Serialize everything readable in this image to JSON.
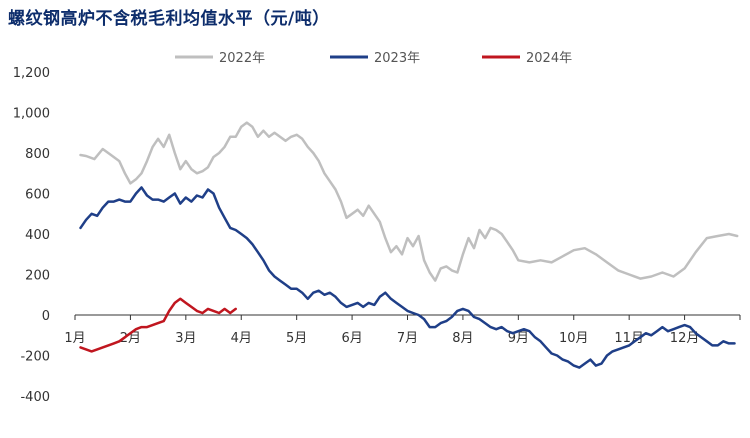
{
  "chart_data": {
    "type": "line",
    "title": "螺纹钢高炉不含税毛利均值水平（元/吨）",
    "x_unit": "month",
    "xlim": [
      1,
      13
    ],
    "xticks": [
      "1月",
      "2月",
      "3月",
      "4月",
      "5月",
      "6月",
      "7月",
      "8月",
      "9月",
      "10月",
      "11月",
      "12月"
    ],
    "yticks": [
      "1,200",
      "1,000",
      "800",
      "600",
      "400",
      "200",
      "0",
      "-200",
      "-400"
    ],
    "ylim": [
      -400,
      1200
    ],
    "legend_position": "top",
    "grid": false,
    "series": [
      {
        "name": "2022年",
        "color": "#bfbfbf",
        "points": [
          [
            1.1,
            790
          ],
          [
            1.2,
            785
          ],
          [
            1.35,
            770
          ],
          [
            1.5,
            820
          ],
          [
            1.65,
            790
          ],
          [
            1.8,
            760
          ],
          [
            1.9,
            700
          ],
          [
            2.0,
            650
          ],
          [
            2.1,
            670
          ],
          [
            2.2,
            700
          ],
          [
            2.3,
            760
          ],
          [
            2.4,
            830
          ],
          [
            2.5,
            870
          ],
          [
            2.6,
            830
          ],
          [
            2.7,
            890
          ],
          [
            2.8,
            800
          ],
          [
            2.9,
            720
          ],
          [
            3.0,
            760
          ],
          [
            3.1,
            720
          ],
          [
            3.2,
            700
          ],
          [
            3.3,
            710
          ],
          [
            3.4,
            730
          ],
          [
            3.5,
            780
          ],
          [
            3.6,
            800
          ],
          [
            3.7,
            830
          ],
          [
            3.8,
            880
          ],
          [
            3.9,
            880
          ],
          [
            4.0,
            930
          ],
          [
            4.1,
            950
          ],
          [
            4.2,
            930
          ],
          [
            4.3,
            880
          ],
          [
            4.4,
            910
          ],
          [
            4.5,
            880
          ],
          [
            4.6,
            900
          ],
          [
            4.7,
            880
          ],
          [
            4.8,
            860
          ],
          [
            4.9,
            880
          ],
          [
            5.0,
            890
          ],
          [
            5.1,
            870
          ],
          [
            5.2,
            830
          ],
          [
            5.3,
            800
          ],
          [
            5.4,
            760
          ],
          [
            5.5,
            700
          ],
          [
            5.6,
            660
          ],
          [
            5.7,
            620
          ],
          [
            5.8,
            560
          ],
          [
            5.9,
            480
          ],
          [
            6.0,
            500
          ],
          [
            6.1,
            520
          ],
          [
            6.2,
            490
          ],
          [
            6.3,
            540
          ],
          [
            6.4,
            500
          ],
          [
            6.5,
            460
          ],
          [
            6.6,
            380
          ],
          [
            6.7,
            310
          ],
          [
            6.8,
            340
          ],
          [
            6.9,
            300
          ],
          [
            7.0,
            380
          ],
          [
            7.1,
            340
          ],
          [
            7.2,
            390
          ],
          [
            7.3,
            270
          ],
          [
            7.4,
            210
          ],
          [
            7.5,
            170
          ],
          [
            7.6,
            230
          ],
          [
            7.7,
            240
          ],
          [
            7.8,
            220
          ],
          [
            7.9,
            210
          ],
          [
            8.0,
            300
          ],
          [
            8.1,
            380
          ],
          [
            8.2,
            330
          ],
          [
            8.3,
            420
          ],
          [
            8.4,
            380
          ],
          [
            8.5,
            430
          ],
          [
            8.6,
            420
          ],
          [
            8.7,
            400
          ],
          [
            8.8,
            360
          ],
          [
            8.9,
            320
          ],
          [
            9.0,
            270
          ],
          [
            9.2,
            260
          ],
          [
            9.4,
            270
          ],
          [
            9.6,
            260
          ],
          [
            9.8,
            290
          ],
          [
            10.0,
            320
          ],
          [
            10.2,
            330
          ],
          [
            10.4,
            300
          ],
          [
            10.6,
            260
          ],
          [
            10.8,
            220
          ],
          [
            11.0,
            200
          ],
          [
            11.2,
            180
          ],
          [
            11.4,
            190
          ],
          [
            11.6,
            210
          ],
          [
            11.8,
            190
          ],
          [
            12.0,
            230
          ],
          [
            12.2,
            310
          ],
          [
            12.4,
            380
          ],
          [
            12.6,
            390
          ],
          [
            12.8,
            400
          ],
          [
            12.95,
            390
          ]
        ]
      },
      {
        "name": "2023年",
        "color": "#1f3f88",
        "points": [
          [
            1.1,
            430
          ],
          [
            1.2,
            470
          ],
          [
            1.3,
            500
          ],
          [
            1.4,
            490
          ],
          [
            1.5,
            530
          ],
          [
            1.6,
            560
          ],
          [
            1.7,
            560
          ],
          [
            1.8,
            570
          ],
          [
            1.9,
            560
          ],
          [
            2.0,
            560
          ],
          [
            2.1,
            600
          ],
          [
            2.2,
            630
          ],
          [
            2.3,
            590
          ],
          [
            2.4,
            570
          ],
          [
            2.5,
            570
          ],
          [
            2.6,
            560
          ],
          [
            2.7,
            580
          ],
          [
            2.8,
            600
          ],
          [
            2.9,
            550
          ],
          [
            3.0,
            580
          ],
          [
            3.1,
            560
          ],
          [
            3.2,
            590
          ],
          [
            3.3,
            580
          ],
          [
            3.4,
            620
          ],
          [
            3.5,
            600
          ],
          [
            3.6,
            530
          ],
          [
            3.7,
            480
          ],
          [
            3.8,
            430
          ],
          [
            3.9,
            420
          ],
          [
            4.0,
            400
          ],
          [
            4.1,
            380
          ],
          [
            4.2,
            350
          ],
          [
            4.3,
            310
          ],
          [
            4.4,
            270
          ],
          [
            4.5,
            220
          ],
          [
            4.6,
            190
          ],
          [
            4.7,
            170
          ],
          [
            4.8,
            150
          ],
          [
            4.9,
            130
          ],
          [
            5.0,
            130
          ],
          [
            5.1,
            110
          ],
          [
            5.2,
            80
          ],
          [
            5.3,
            110
          ],
          [
            5.4,
            120
          ],
          [
            5.5,
            100
          ],
          [
            5.6,
            110
          ],
          [
            5.7,
            90
          ],
          [
            5.8,
            60
          ],
          [
            5.9,
            40
          ],
          [
            6.0,
            50
          ],
          [
            6.1,
            60
          ],
          [
            6.2,
            40
          ],
          [
            6.3,
            60
          ],
          [
            6.4,
            50
          ],
          [
            6.5,
            90
          ],
          [
            6.6,
            110
          ],
          [
            6.7,
            80
          ],
          [
            6.8,
            60
          ],
          [
            6.9,
            40
          ],
          [
            7.0,
            20
          ],
          [
            7.1,
            10
          ],
          [
            7.2,
            0
          ],
          [
            7.3,
            -20
          ],
          [
            7.4,
            -60
          ],
          [
            7.5,
            -60
          ],
          [
            7.6,
            -40
          ],
          [
            7.7,
            -30
          ],
          [
            7.8,
            -10
          ],
          [
            7.9,
            20
          ],
          [
            8.0,
            30
          ],
          [
            8.1,
            20
          ],
          [
            8.2,
            -10
          ],
          [
            8.3,
            -20
          ],
          [
            8.4,
            -40
          ],
          [
            8.5,
            -60
          ],
          [
            8.6,
            -70
          ],
          [
            8.7,
            -60
          ],
          [
            8.8,
            -80
          ],
          [
            8.9,
            -90
          ],
          [
            9.0,
            -80
          ],
          [
            9.1,
            -70
          ],
          [
            9.2,
            -80
          ],
          [
            9.3,
            -110
          ],
          [
            9.4,
            -130
          ],
          [
            9.5,
            -160
          ],
          [
            9.6,
            -190
          ],
          [
            9.7,
            -200
          ],
          [
            9.8,
            -220
          ],
          [
            9.9,
            -230
          ],
          [
            10.0,
            -250
          ],
          [
            10.1,
            -260
          ],
          [
            10.2,
            -240
          ],
          [
            10.3,
            -220
          ],
          [
            10.4,
            -250
          ],
          [
            10.5,
            -240
          ],
          [
            10.6,
            -200
          ],
          [
            10.7,
            -180
          ],
          [
            10.8,
            -170
          ],
          [
            10.9,
            -160
          ],
          [
            11.0,
            -150
          ],
          [
            11.1,
            -130
          ],
          [
            11.2,
            -110
          ],
          [
            11.3,
            -90
          ],
          [
            11.4,
            -100
          ],
          [
            11.5,
            -80
          ],
          [
            11.6,
            -60
          ],
          [
            11.7,
            -80
          ],
          [
            11.8,
            -70
          ],
          [
            11.9,
            -60
          ],
          [
            12.0,
            -50
          ],
          [
            12.1,
            -60
          ],
          [
            12.2,
            -90
          ],
          [
            12.3,
            -110
          ],
          [
            12.4,
            -130
          ],
          [
            12.5,
            -150
          ],
          [
            12.6,
            -150
          ],
          [
            12.7,
            -130
          ],
          [
            12.8,
            -140
          ],
          [
            12.9,
            -140
          ]
        ]
      },
      {
        "name": "2024年",
        "color": "#c0161f",
        "points": [
          [
            1.1,
            -160
          ],
          [
            1.2,
            -170
          ],
          [
            1.3,
            -180
          ],
          [
            1.4,
            -170
          ],
          [
            1.5,
            -160
          ],
          [
            1.6,
            -150
          ],
          [
            1.7,
            -140
          ],
          [
            1.8,
            -130
          ],
          [
            1.9,
            -110
          ],
          [
            2.0,
            -90
          ],
          [
            2.1,
            -70
          ],
          [
            2.2,
            -60
          ],
          [
            2.3,
            -60
          ],
          [
            2.4,
            -50
          ],
          [
            2.5,
            -40
          ],
          [
            2.6,
            -30
          ],
          [
            2.7,
            20
          ],
          [
            2.8,
            60
          ],
          [
            2.9,
            80
          ],
          [
            3.0,
            60
          ],
          [
            3.1,
            40
          ],
          [
            3.2,
            20
          ],
          [
            3.3,
            10
          ],
          [
            3.4,
            30
          ],
          [
            3.5,
            20
          ],
          [
            3.6,
            10
          ],
          [
            3.7,
            30
          ],
          [
            3.8,
            10
          ],
          [
            3.9,
            30
          ]
        ]
      }
    ]
  }
}
